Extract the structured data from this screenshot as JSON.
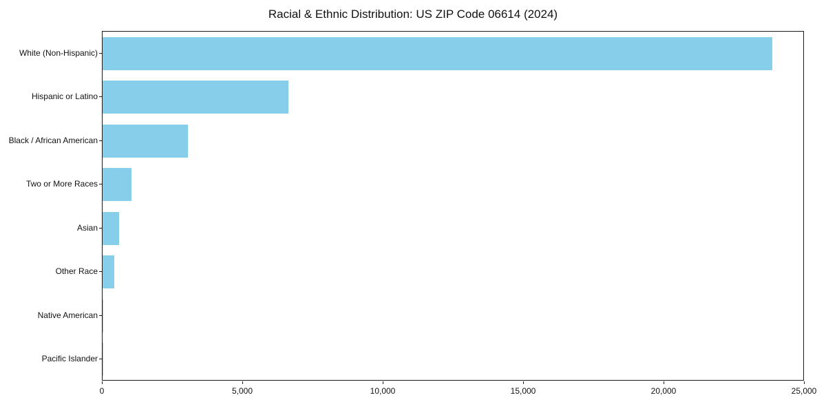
{
  "title": "Racial & Ethnic Distribution: US ZIP Code 06614 (2024)",
  "chart_data": {
    "type": "bar",
    "orientation": "horizontal",
    "title": "Racial & Ethnic Distribution: US ZIP Code 06614 (2024)",
    "categories": [
      "White (Non-Hispanic)",
      "Hispanic or Latino",
      "Black / African American",
      "Two or More Races",
      "Asian",
      "Other Race",
      "Native American",
      "Pacific Islander"
    ],
    "values": [
      23850,
      6620,
      3050,
      1040,
      590,
      420,
      20,
      10
    ],
    "xlabel": "",
    "ylabel": "",
    "xlim": [
      0,
      25000
    ],
    "x_ticks": [
      0,
      5000,
      10000,
      15000,
      20000,
      25000
    ],
    "x_tick_labels": [
      "0",
      "5,000",
      "10,000",
      "15,000",
      "20,000",
      "25,000"
    ],
    "bar_color": "#87CEEB",
    "grid": false,
    "legend_position": "none"
  }
}
